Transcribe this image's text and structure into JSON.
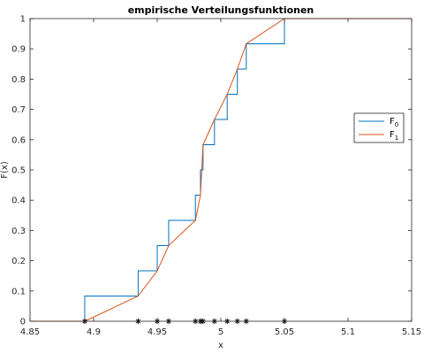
{
  "chart_data": {
    "type": "line",
    "title": "empirische Verteilungsfunktionen",
    "xlabel": "x",
    "ylabel": "F(x)",
    "xlim": [
      4.85,
      5.15
    ],
    "ylim": [
      0,
      1
    ],
    "x_ticks": [
      "4.85",
      "4.9",
      "4.95",
      "5",
      "5.05",
      "5.1",
      "5.15"
    ],
    "y_ticks": [
      "0",
      "0.1",
      "0.2",
      "0.3",
      "0.4",
      "0.5",
      "0.6",
      "0.7",
      "0.8",
      "0.9",
      "1"
    ],
    "grid": false,
    "legend_position": "right",
    "sample": [
      4.893,
      4.935,
      4.95,
      4.959,
      4.98,
      4.984,
      4.986,
      4.995,
      5.005,
      5.013,
      5.02,
      5.05
    ],
    "series": [
      {
        "name": "F",
        "subscript": "0",
        "color": "#0072BD",
        "step": true,
        "x": [
          4.85,
          4.893,
          4.893,
          4.935,
          4.935,
          4.95,
          4.95,
          4.959,
          4.959,
          4.98,
          4.98,
          4.984,
          4.984,
          4.986,
          4.986,
          4.995,
          4.995,
          5.005,
          5.005,
          5.013,
          5.013,
          5.02,
          5.02,
          5.05,
          5.05,
          5.15
        ],
        "y": [
          0,
          0,
          0.0833,
          0.0833,
          0.1667,
          0.1667,
          0.25,
          0.25,
          0.3333,
          0.3333,
          0.4167,
          0.4167,
          0.5,
          0.5,
          0.5833,
          0.5833,
          0.6667,
          0.6667,
          0.75,
          0.75,
          0.8333,
          0.8333,
          0.9167,
          0.9167,
          1,
          1
        ]
      },
      {
        "name": "F",
        "subscript": "1",
        "color": "#D95319",
        "step": false,
        "x": [
          4.85,
          4.893,
          4.935,
          4.95,
          4.959,
          4.98,
          4.984,
          4.986,
          4.995,
          5.005,
          5.013,
          5.02,
          5.05,
          5.15
        ],
        "y": [
          0,
          0,
          0.0833,
          0.1667,
          0.25,
          0.3333,
          0.4167,
          0.5833,
          0.6667,
          0.75,
          0.8333,
          0.9167,
          1,
          1
        ]
      }
    ]
  }
}
